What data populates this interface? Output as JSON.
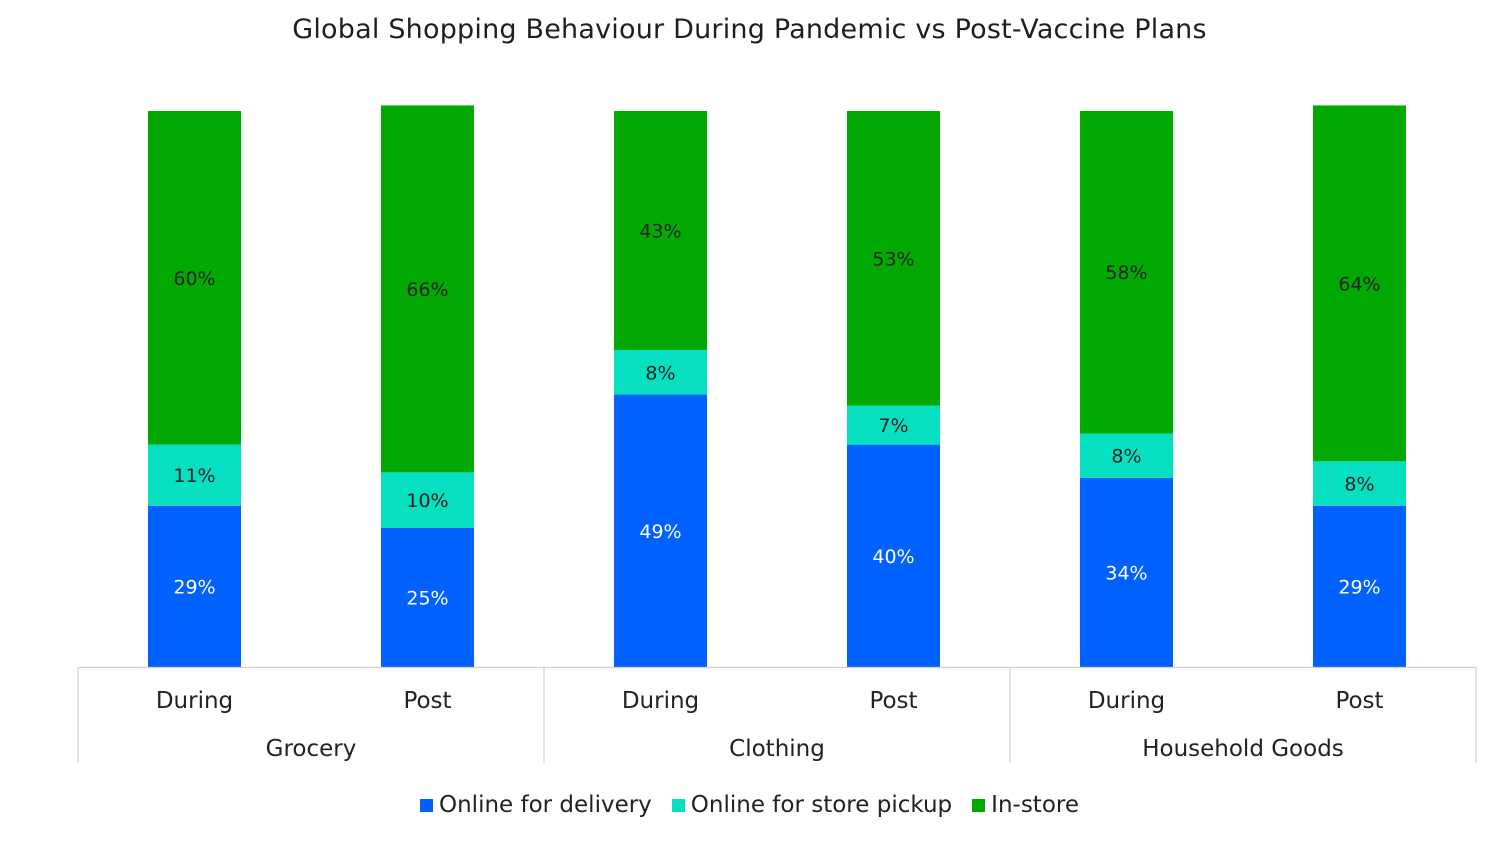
{
  "chart_data": {
    "type": "bar",
    "stacked": true,
    "percent_stacked": true,
    "title": "Global Shopping Behaviour During Pandemic vs Post-Vaccine Plans",
    "xlabel": "",
    "ylabel": "",
    "groups": [
      "Grocery",
      "Clothing",
      "Household Goods"
    ],
    "categories": [
      "During",
      "Post",
      "During",
      "Post",
      "During",
      "Post"
    ],
    "category_groups": [
      0,
      0,
      1,
      1,
      2,
      2
    ],
    "ylim": [
      0,
      100
    ],
    "grid": false,
    "legend_position": "bottom",
    "series": [
      {
        "name": "Online for delivery",
        "color": "#0061fe",
        "label_color": "#ffffff",
        "values": [
          29,
          25,
          49,
          40,
          34,
          29
        ],
        "labels": [
          "29%",
          "25%",
          "49%",
          "40%",
          "34%",
          "29%"
        ]
      },
      {
        "name": "Online for store pickup",
        "color": "#07e0c0",
        "label_color": "#222222",
        "values": [
          11,
          10,
          8,
          7,
          8,
          8
        ],
        "labels": [
          "11%",
          "10%",
          "8%",
          "7%",
          "8%",
          "8%"
        ]
      },
      {
        "name": "In-store",
        "color": "#01a902",
        "label_color": "#222222",
        "values": [
          60,
          66,
          43,
          53,
          58,
          64
        ],
        "labels": [
          "60%",
          "66%",
          "43%",
          "53%",
          "58%",
          "64%"
        ]
      }
    ]
  }
}
